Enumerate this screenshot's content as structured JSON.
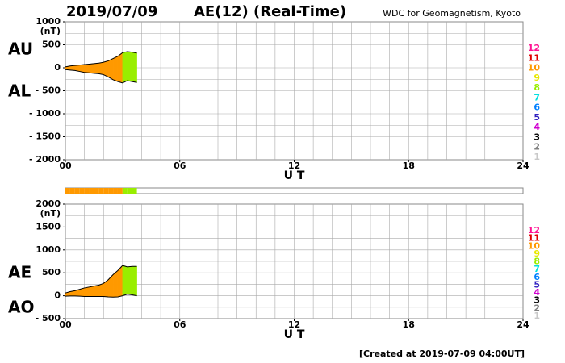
{
  "header": {
    "date": "2019/07/09",
    "title": "AE(12) (Real-Time)",
    "source": "WDC for Geomagnetism, Kyoto",
    "footer": "[Created at 2019-07-09 04:00UT]"
  },
  "legend": {
    "values": [
      12,
      11,
      10,
      9,
      8,
      7,
      6,
      5,
      4,
      3,
      2,
      1
    ],
    "colors": [
      "#ff1493",
      "#e00000",
      "#ff9900",
      "#e8e800",
      "#99ee00",
      "#00e0e0",
      "#0080ff",
      "#3020c0",
      "#d000d0",
      "#000000",
      "#808080",
      "#c8c8c8"
    ]
  },
  "chart_data": [
    {
      "type": "area",
      "unit": "(nT)",
      "xlabel": "U T",
      "xlim": [
        0,
        24
      ],
      "xticks": [
        {
          "value": 0,
          "label": "00"
        },
        {
          "value": 6,
          "label": "06"
        },
        12,
        18,
        24
      ],
      "ylim": [
        -2000,
        1000
      ],
      "yticks": [
        1000,
        500,
        0,
        {
          "value": -500,
          "label": "- 500"
        },
        {
          "value": -1000,
          "label": "- 1000"
        },
        {
          "value": -1500,
          "label": "- 1500"
        },
        {
          "value": -2000,
          "label": "- 2000"
        }
      ],
      "grid_x": [
        1,
        2,
        3,
        4,
        5,
        6,
        7,
        8,
        9,
        10,
        11,
        12,
        13,
        14,
        15,
        16,
        17,
        18,
        19,
        20,
        21,
        22,
        23
      ],
      "grid_y": [
        750,
        500,
        250,
        0,
        -250,
        -500,
        -750,
        -1000,
        -1250,
        -1500,
        -1750
      ],
      "x": [
        0,
        0.25,
        0.5,
        0.75,
        1,
        1.25,
        1.5,
        1.75,
        2,
        2.25,
        2.5,
        2.75,
        3,
        3.25,
        3.5,
        3.75
      ],
      "stations": [
        10,
        10,
        10,
        10,
        10,
        10,
        10,
        10,
        10,
        10,
        10,
        10,
        8,
        8,
        8,
        8
      ],
      "series": [
        {
          "name": "AU",
          "color": "#000000",
          "values": [
            20,
            40,
            50,
            60,
            70,
            80,
            90,
            100,
            120,
            150,
            200,
            250,
            330,
            350,
            340,
            320
          ]
        },
        {
          "name": "AL",
          "color": "#000000",
          "values": [
            -40,
            -50,
            -60,
            -80,
            -100,
            -110,
            -120,
            -130,
            -150,
            -200,
            -260,
            -300,
            -330,
            -280,
            -300,
            -320
          ]
        }
      ]
    },
    {
      "type": "area",
      "unit": "(nT)",
      "xlabel": "U T",
      "xlim": [
        0,
        24
      ],
      "xticks": [
        {
          "value": 0,
          "label": "00"
        },
        {
          "value": 6,
          "label": "06"
        },
        12,
        18,
        24
      ],
      "ylim": [
        -500,
        2000
      ],
      "yticks": [
        2000,
        1500,
        1000,
        500,
        0,
        {
          "value": -500,
          "label": "- 500"
        }
      ],
      "grid_x": [
        1,
        2,
        3,
        4,
        5,
        6,
        7,
        8,
        9,
        10,
        11,
        12,
        13,
        14,
        15,
        16,
        17,
        18,
        19,
        20,
        21,
        22,
        23
      ],
      "grid_y": [
        1750,
        1500,
        1250,
        1000,
        750,
        500,
        250,
        0,
        -250
      ],
      "x": [
        0,
        0.25,
        0.5,
        0.75,
        1,
        1.25,
        1.5,
        1.75,
        2,
        2.25,
        2.5,
        2.75,
        3,
        3.25,
        3.5,
        3.75
      ],
      "stations": [
        10,
        10,
        10,
        10,
        10,
        10,
        10,
        10,
        10,
        10,
        10,
        10,
        8,
        8,
        8,
        8
      ],
      "series": [
        {
          "name": "AE",
          "color": "#000000",
          "values": [
            60,
            90,
            110,
            140,
            170,
            190,
            210,
            230,
            270,
            350,
            460,
            550,
            660,
            630,
            640,
            640
          ]
        },
        {
          "name": "AO",
          "color": "#000000",
          "values": [
            -10,
            -5,
            -5,
            -10,
            -15,
            -15,
            -15,
            -15,
            -15,
            -25,
            -30,
            -25,
            0,
            35,
            20,
            0
          ]
        }
      ]
    }
  ]
}
